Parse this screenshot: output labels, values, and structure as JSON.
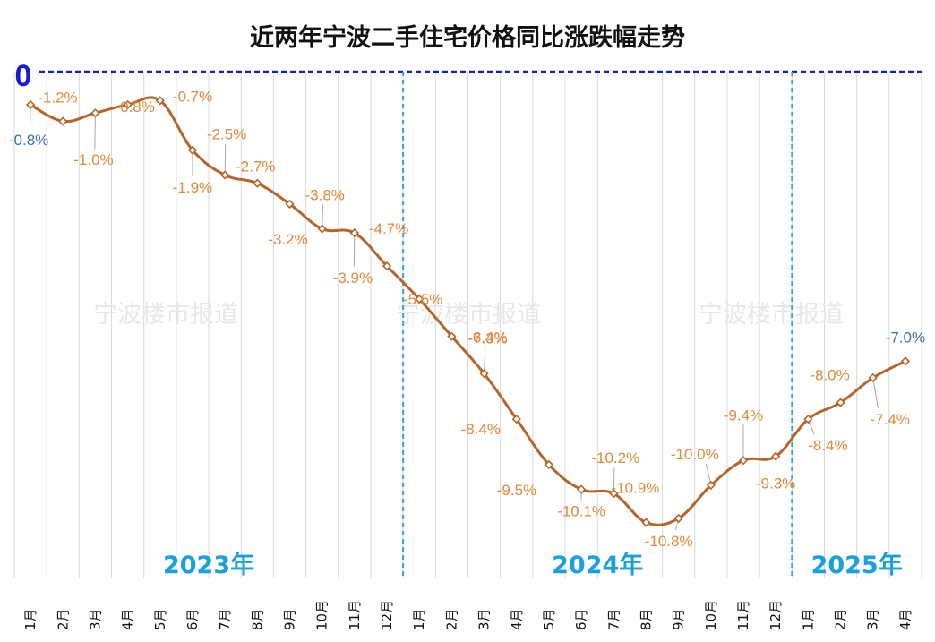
{
  "chart_data": {
    "type": "line",
    "title": "近两年宁波二手住宅价格同比涨跌幅走势",
    "zero_label": "0",
    "watermark": "宁波楼市报道",
    "categories": [
      "1月",
      "2月",
      "3月",
      "4月",
      "5月",
      "6月",
      "7月",
      "8月",
      "9月",
      "10月",
      "11月",
      "12月",
      "1月",
      "2月",
      "3月",
      "4月",
      "5月",
      "6月",
      "7月",
      "8月",
      "9月",
      "10月",
      "11月",
      "12月",
      "1月",
      "2月",
      "3月",
      "4月"
    ],
    "years": [
      {
        "label": "2023年",
        "start": 0,
        "end": 11
      },
      {
        "label": "2024年",
        "start": 12,
        "end": 23
      },
      {
        "label": "2025年",
        "start": 24,
        "end": 27
      }
    ],
    "values": [
      -0.8,
      -1.2,
      -1.0,
      -0.8,
      -0.7,
      -1.9,
      -2.5,
      -2.7,
      -3.2,
      -3.8,
      -3.9,
      -4.7,
      -5.5,
      -6.4,
      -7.3,
      -8.4,
      -9.5,
      -10.1,
      -10.2,
      -10.9,
      -10.8,
      -10.0,
      -9.4,
      -9.3,
      -8.4,
      -8.0,
      -7.4,
      -7.0
    ],
    "data_labels": [
      "-0.8%",
      "-1.2%",
      "-1.0%",
      "-0.8%",
      "-0.7%",
      "-1.9%",
      "-2.5%",
      "-2.7%",
      "-3.2%",
      "-3.8%",
      "-3.9%",
      "-4.7%",
      "-5.5%",
      "-6.4%",
      "-7.3%",
      "-8.4%",
      "-9.5%",
      "-10.1%",
      "-10.2%",
      "-10.9%",
      "-10.8%",
      "-10.0%",
      "-9.4%",
      "-9.3%",
      "-8.4%",
      "-8.0%",
      "-7.4%",
      "-7.0%"
    ],
    "ylim": [
      -11.5,
      0
    ],
    "grid": true,
    "colors": {
      "line": "#b5652a",
      "marker_fill": "#ffffff",
      "label": "#e0893a",
      "label_highlight": "#3f6fb4",
      "zero_line": "#1a1ab8",
      "year_divider": "#2aa7df",
      "grid": "#d9d9d9"
    }
  }
}
